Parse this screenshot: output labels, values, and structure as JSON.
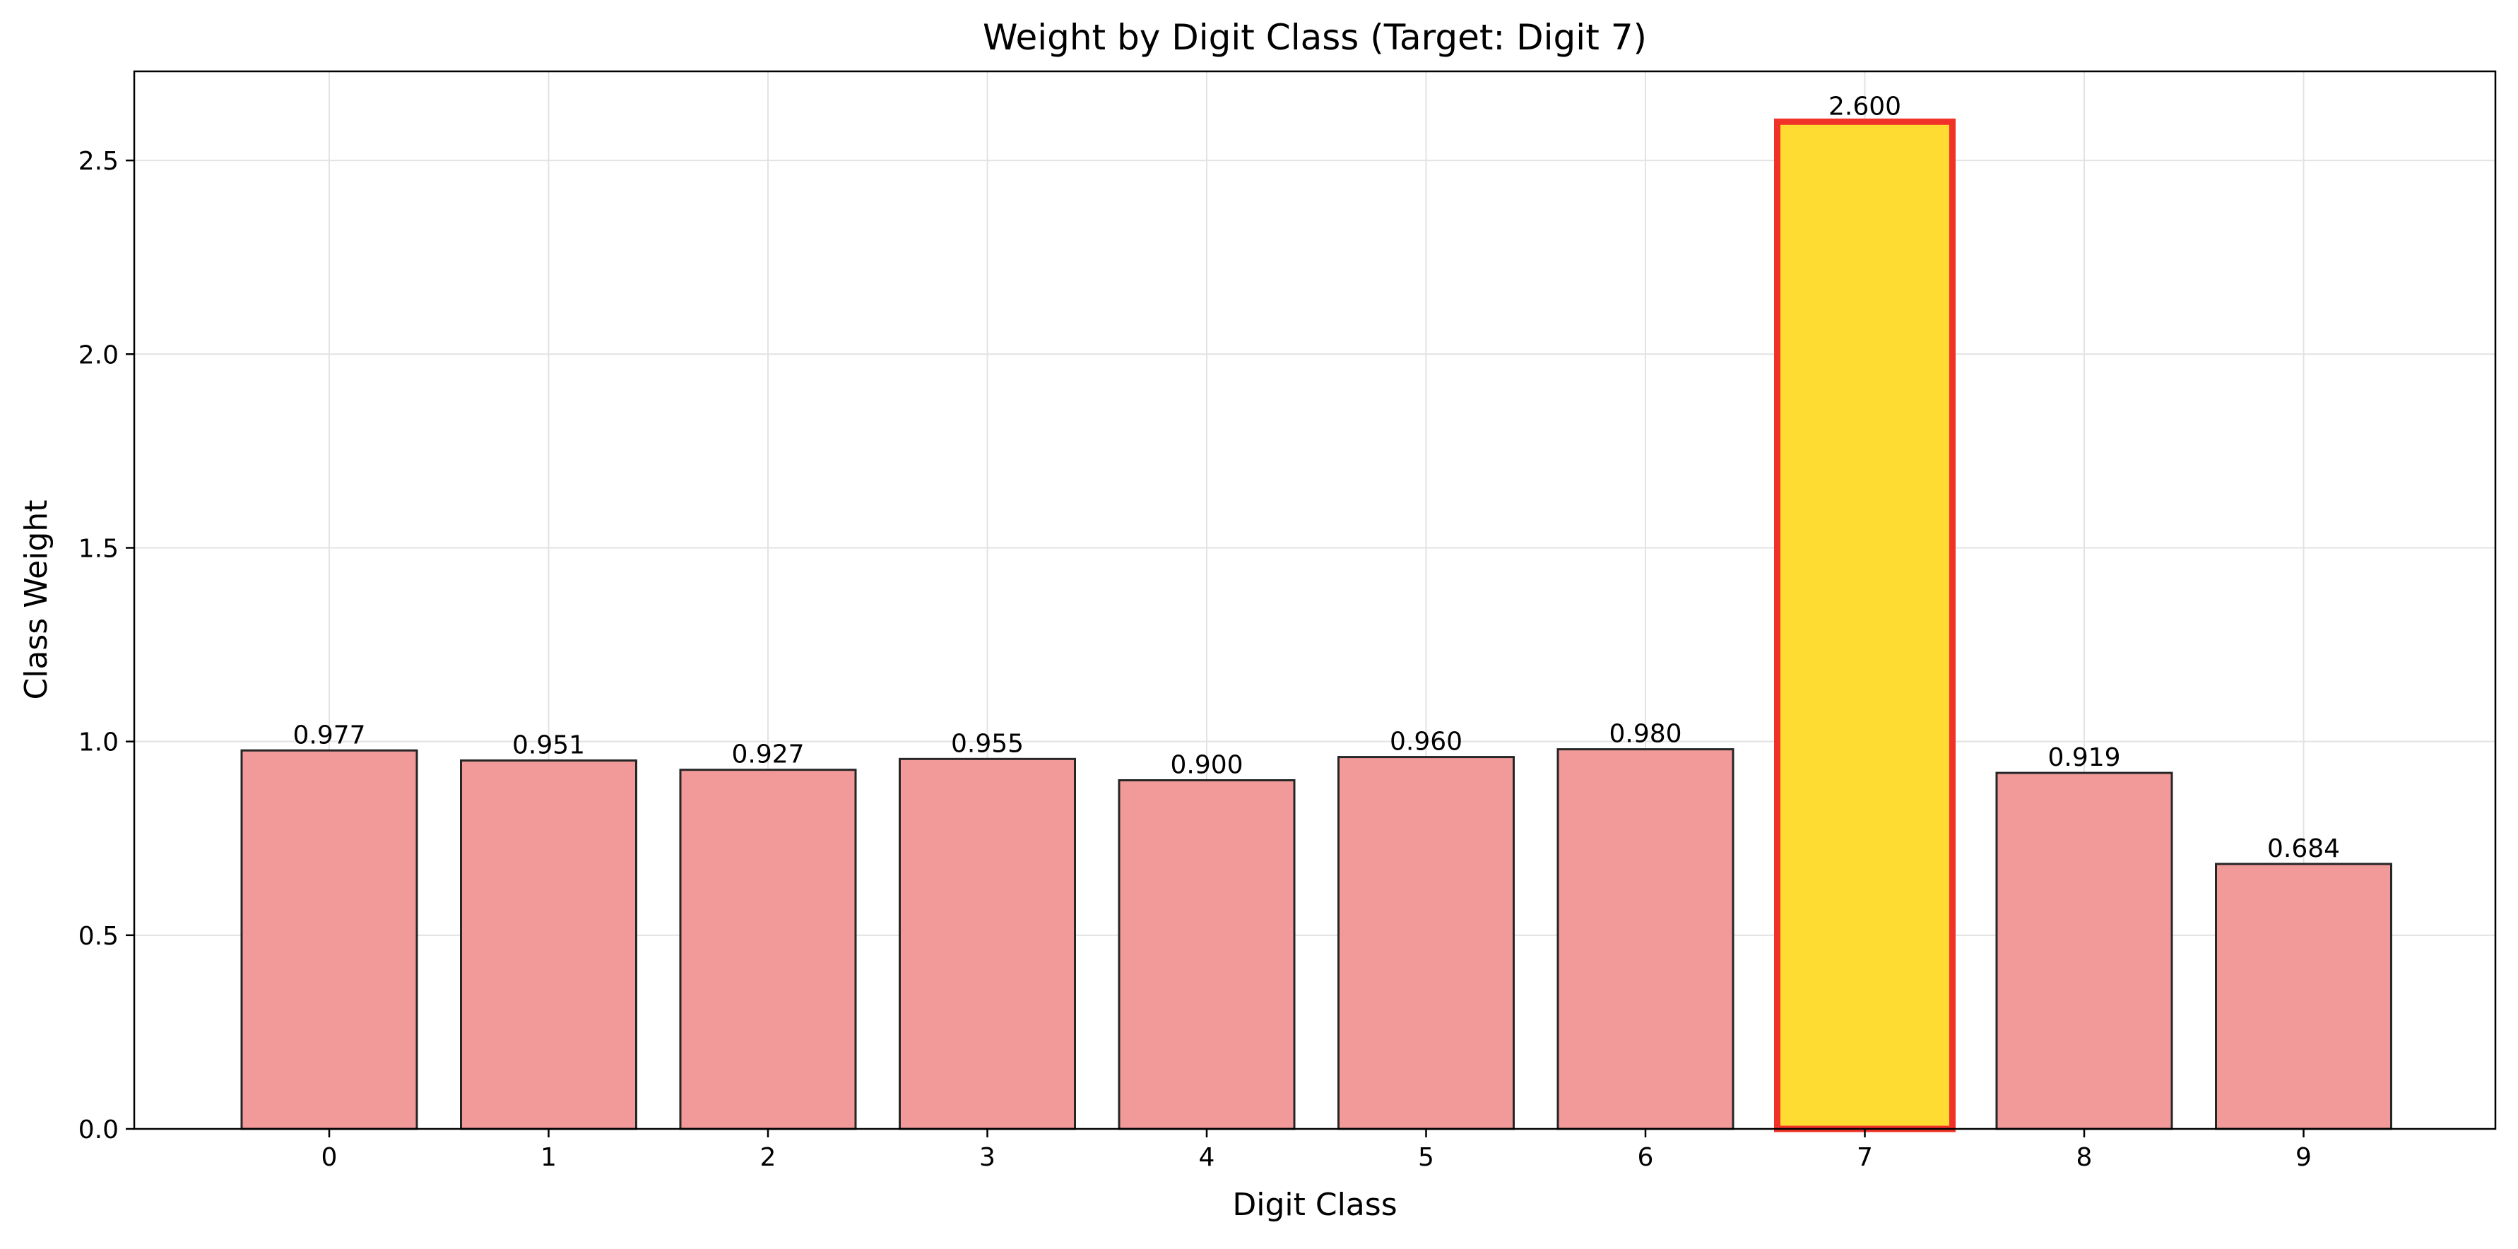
{
  "chart_data": {
    "type": "bar",
    "title": "Weight by Digit Class (Target: Digit 7)",
    "xlabel": "Digit Class",
    "ylabel": "Class Weight",
    "categories": [
      "0",
      "1",
      "2",
      "3",
      "4",
      "5",
      "6",
      "7",
      "8",
      "9"
    ],
    "values": [
      0.977,
      0.951,
      0.927,
      0.955,
      0.9,
      0.96,
      0.98,
      2.6,
      0.919,
      0.684
    ],
    "value_labels": [
      "0.977",
      "0.951",
      "0.927",
      "0.955",
      "0.900",
      "0.960",
      "0.980",
      "2.600",
      "0.919",
      "0.684"
    ],
    "highlight_category": "7",
    "ylim": [
      0,
      2.73
    ],
    "yticks": [
      0.0,
      0.5,
      1.0,
      1.5,
      2.0,
      2.5
    ],
    "ytick_labels": [
      "0.0",
      "0.5",
      "1.0",
      "1.5",
      "2.0",
      "2.5"
    ],
    "grid": true,
    "colors": {
      "bar_fill": "#f29a9a",
      "bar_edge": "#262626",
      "highlight_fill": "#ffdc32",
      "highlight_edge": "#f03228",
      "grid": "#e3e3e3",
      "axis": "#000000"
    }
  }
}
